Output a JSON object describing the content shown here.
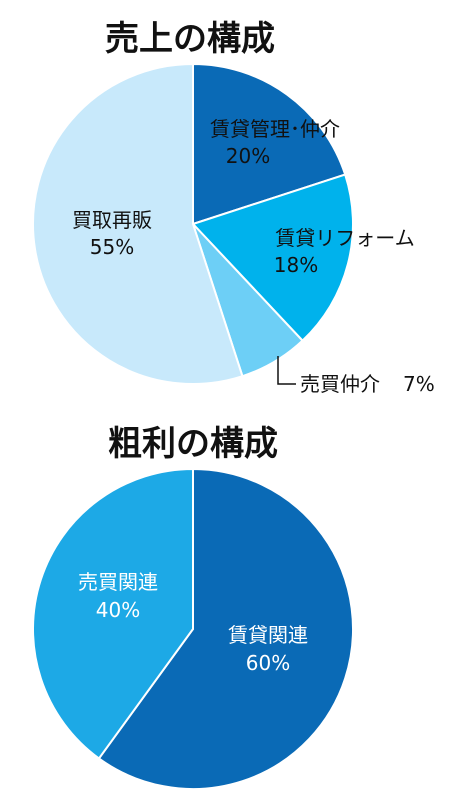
{
  "chart_data": [
    {
      "type": "pie",
      "title": "売上の構成",
      "slices": [
        {
          "label": "賃貸管理･仲介",
          "value": 20,
          "value_text": "20%",
          "color": "#0a6ab6"
        },
        {
          "label": "賃貸リフォーム",
          "value": 18,
          "value_text": "18%",
          "color": "#00b2ec"
        },
        {
          "label": "売買仲介",
          "value": 7,
          "value_text": "7%",
          "color": "#6dcff6"
        },
        {
          "label": "買取再販",
          "value": 55,
          "value_text": "55%",
          "color": "#c8e9fb"
        }
      ]
    },
    {
      "type": "pie",
      "title": "粗利の構成",
      "slices": [
        {
          "label": "賃貸関連",
          "value": 60,
          "value_text": "60%",
          "color": "#0a6ab6"
        },
        {
          "label": "売買関連",
          "value": 40,
          "value_text": "40%",
          "color": "#1da9e6"
        }
      ]
    }
  ]
}
